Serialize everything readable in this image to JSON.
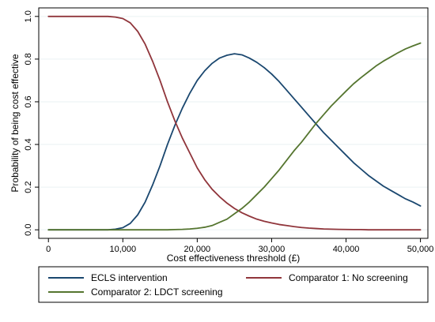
{
  "chart_data": {
    "type": "line",
    "title": "",
    "xlabel": "Cost effectiveness threshold (£)",
    "ylabel": "Probability of being cost effective",
    "xlim": [
      0,
      50000
    ],
    "ylim": [
      0,
      1
    ],
    "x_ticks": [
      0,
      10000,
      20000,
      30000,
      40000,
      50000
    ],
    "x_tick_labels": [
      "0",
      "10,000",
      "20,000",
      "30,000",
      "40,000",
      "50,000"
    ],
    "y_ticks": [
      0,
      0.2,
      0.4,
      0.6,
      0.8,
      1.0
    ],
    "y_tick_labels": [
      "0.0",
      "0.2",
      "0.4",
      "0.6",
      "0.8",
      "1.0"
    ],
    "grid": true,
    "legend_position": "bottom",
    "x": [
      0,
      1000,
      2000,
      3000,
      4000,
      5000,
      6000,
      7000,
      8000,
      9000,
      10000,
      11000,
      12000,
      13000,
      14000,
      15000,
      16000,
      17000,
      18000,
      19000,
      20000,
      21000,
      22000,
      23000,
      24000,
      25000,
      26000,
      27000,
      28000,
      29000,
      30000,
      31000,
      32000,
      33000,
      34000,
      35000,
      36000,
      37000,
      38000,
      39000,
      40000,
      41000,
      42000,
      43000,
      44000,
      45000,
      46000,
      47000,
      48000,
      49000,
      50000
    ],
    "series": [
      {
        "name": "ECLS intervention",
        "color": "#1a476f",
        "values": [
          0,
          0,
          0,
          0,
          0,
          0,
          0,
          0,
          0,
          0.003,
          0.01,
          0.03,
          0.07,
          0.13,
          0.21,
          0.3,
          0.4,
          0.49,
          0.57,
          0.64,
          0.7,
          0.745,
          0.78,
          0.805,
          0.818,
          0.825,
          0.82,
          0.805,
          0.785,
          0.76,
          0.73,
          0.695,
          0.655,
          0.615,
          0.575,
          0.535,
          0.495,
          0.455,
          0.42,
          0.385,
          0.35,
          0.315,
          0.285,
          0.255,
          0.23,
          0.205,
          0.185,
          0.165,
          0.145,
          0.13,
          0.112
        ]
      },
      {
        "name": "Comparator 1: No screening",
        "color": "#90353b",
        "values": [
          1,
          1,
          1,
          1,
          1,
          1,
          1,
          1,
          1,
          0.997,
          0.99,
          0.97,
          0.93,
          0.87,
          0.79,
          0.7,
          0.6,
          0.51,
          0.43,
          0.36,
          0.29,
          0.235,
          0.19,
          0.155,
          0.125,
          0.1,
          0.08,
          0.064,
          0.05,
          0.04,
          0.032,
          0.025,
          0.02,
          0.015,
          0.011,
          0.008,
          0.006,
          0.004,
          0.003,
          0.002,
          0.0015,
          0.001,
          0.001,
          0,
          0,
          0,
          0,
          0,
          0,
          0,
          0
        ]
      },
      {
        "name": "Comparator 2: LDCT screening",
        "color": "#55752f",
        "values": [
          0,
          0,
          0,
          0,
          0,
          0,
          0,
          0,
          0,
          0,
          0,
          0,
          0,
          0,
          0,
          0,
          0,
          0.001,
          0.002,
          0.004,
          0.007,
          0.012,
          0.02,
          0.035,
          0.05,
          0.075,
          0.1,
          0.13,
          0.165,
          0.2,
          0.24,
          0.28,
          0.325,
          0.37,
          0.41,
          0.455,
          0.5,
          0.54,
          0.58,
          0.615,
          0.65,
          0.684,
          0.713,
          0.74,
          0.767,
          0.79,
          0.81,
          0.83,
          0.848,
          0.862,
          0.875
        ]
      }
    ]
  }
}
